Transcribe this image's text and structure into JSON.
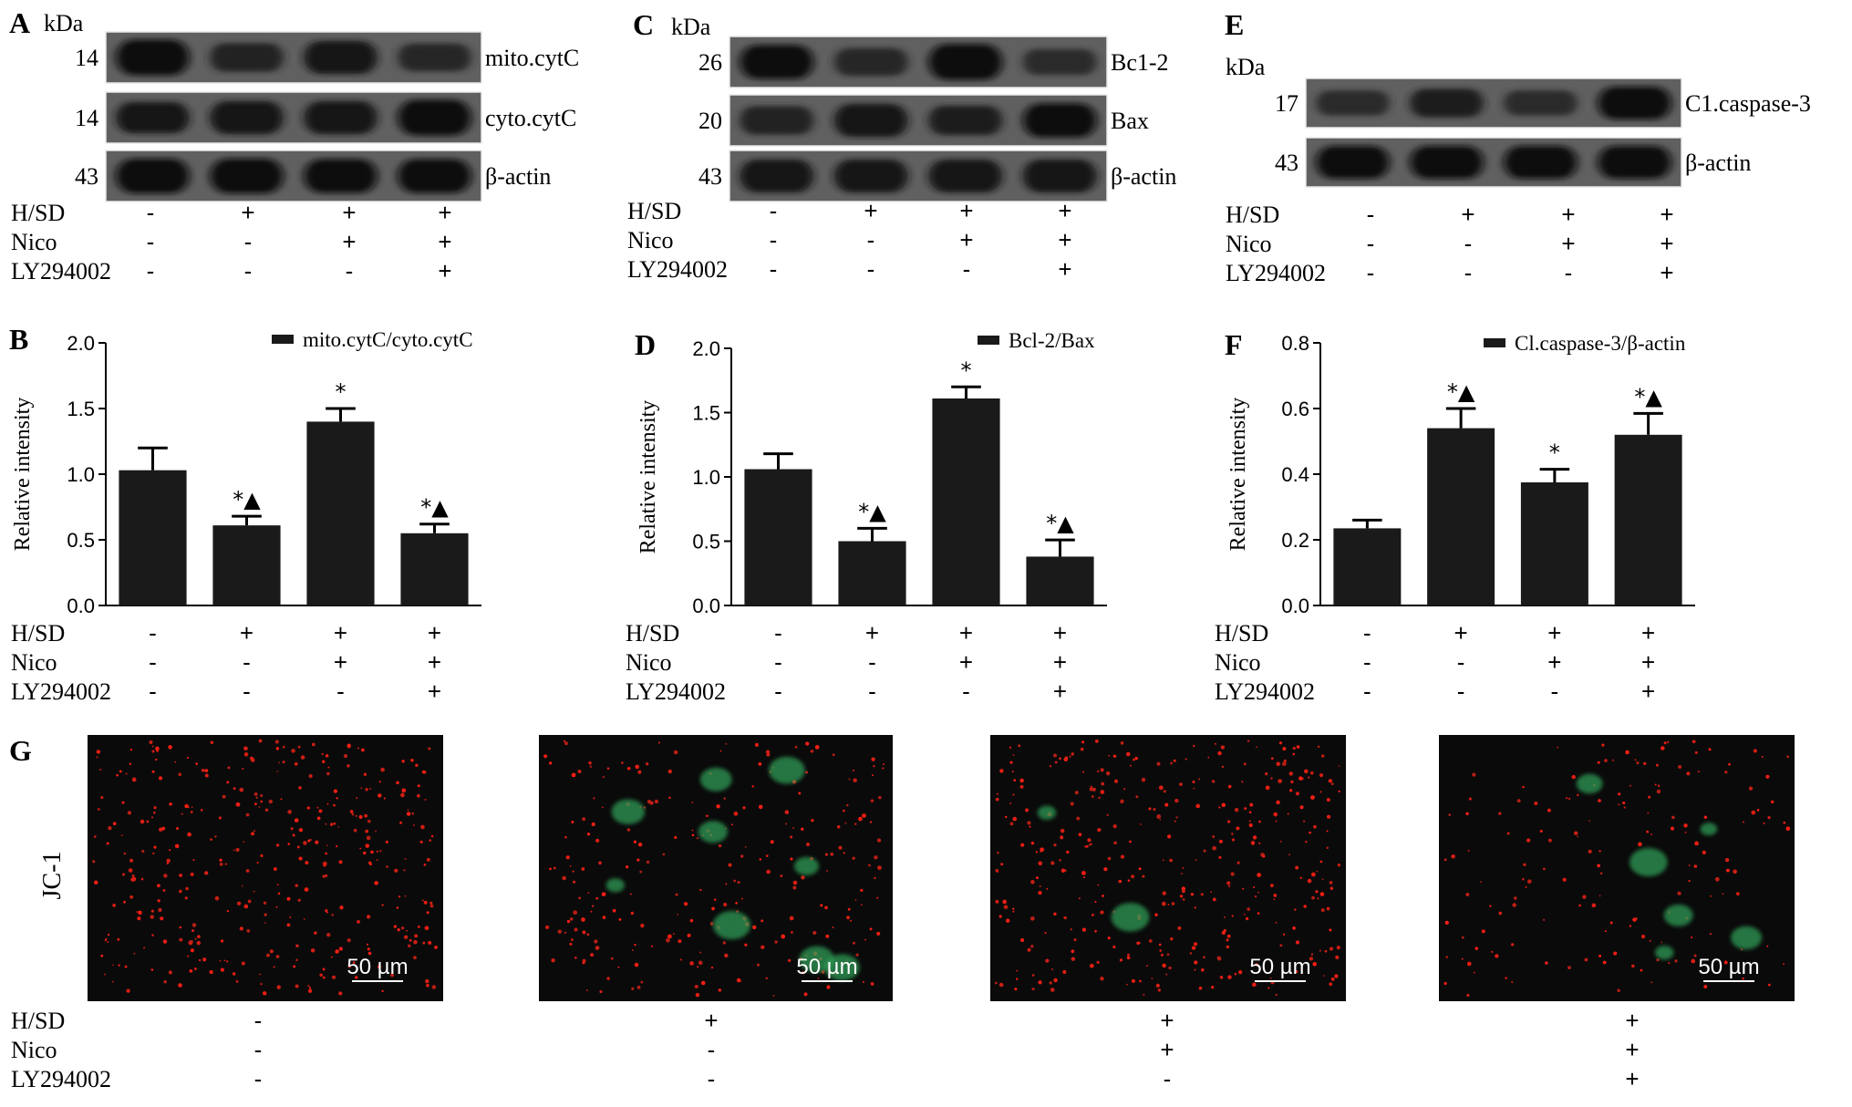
{
  "panels": {
    "A": {
      "letter": "A",
      "kda": "kDa",
      "bands": [
        {
          "mw": "14",
          "label": "mito.cytC",
          "intensity": [
            1.0,
            0.6,
            0.85,
            0.55
          ]
        },
        {
          "mw": "14",
          "label": "cyto.cytC",
          "intensity": [
            0.75,
            0.85,
            0.85,
            1.0
          ]
        },
        {
          "mw": "43",
          "label": "β-actin",
          "intensity": [
            0.95,
            0.95,
            0.9,
            0.9
          ]
        }
      ]
    },
    "C": {
      "letter": "C",
      "kda": "kDa",
      "bands": [
        {
          "mw": "26",
          "label": "Bc1-2",
          "intensity": [
            0.9,
            0.55,
            1.0,
            0.45
          ]
        },
        {
          "mw": "20",
          "label": "Bax",
          "intensity": [
            0.6,
            0.85,
            0.65,
            0.9
          ]
        },
        {
          "mw": "43",
          "label": "β-actin",
          "intensity": [
            0.85,
            0.85,
            0.85,
            0.85
          ]
        }
      ]
    },
    "E": {
      "letter": "E",
      "kda": "kDa",
      "bands": [
        {
          "mw": "17",
          "label": "C1.caspase-3",
          "intensity": [
            0.45,
            0.65,
            0.45,
            0.9
          ]
        },
        {
          "mw": "43",
          "label": "β-actin",
          "intensity": [
            0.9,
            0.9,
            0.9,
            0.9
          ]
        }
      ]
    },
    "G": {
      "letter": "G",
      "stain": "JC-1",
      "scale_bar": "50 µm",
      "images": [
        {
          "green_cells": 0
        },
        {
          "green_cells": 9
        },
        {
          "green_cells": 2
        },
        {
          "green_cells": 6
        }
      ]
    }
  },
  "treatment_labels": [
    "H/SD",
    "Nico",
    "LY294002"
  ],
  "treatment_signs": [
    [
      "-",
      "+",
      "+",
      "+"
    ],
    [
      "-",
      "-",
      "+",
      "+"
    ],
    [
      "-",
      "-",
      "-",
      "+"
    ]
  ],
  "bar_color": "#1a1a1a",
  "chart_data": [
    {
      "type": "bar",
      "panel": "B",
      "legend": "mito.cytC/cyto.cytC",
      "ylabel": "Relative intensity",
      "ylim": [
        0,
        2.0
      ],
      "yticks": [
        "0.0",
        "0.5",
        "1.0",
        "1.5",
        "2.0"
      ],
      "ytick_values": [
        0,
        0.5,
        1.0,
        1.5,
        2.0
      ],
      "values": [
        1.03,
        0.61,
        1.4,
        0.55
      ],
      "errors": [
        0.17,
        0.07,
        0.1,
        0.07
      ],
      "annotations": [
        "",
        "*▲",
        "*",
        "*▲"
      ]
    },
    {
      "type": "bar",
      "panel": "D",
      "legend": "Bcl-2/Bax",
      "ylabel": "Relative intensity",
      "ylim": [
        0,
        2.0
      ],
      "yticks": [
        "0.0",
        "0.5",
        "1.0",
        "1.5",
        "2.0"
      ],
      "ytick_values": [
        0,
        0.5,
        1.0,
        1.5,
        2.0
      ],
      "values": [
        1.06,
        0.5,
        1.61,
        0.38
      ],
      "errors": [
        0.12,
        0.1,
        0.09,
        0.13
      ],
      "annotations": [
        "",
        "*▲",
        "*",
        "*▲"
      ]
    },
    {
      "type": "bar",
      "panel": "F",
      "legend": "Cl.caspase-3/β-actin",
      "ylabel": "Relative intensity",
      "ylim": [
        0,
        0.8
      ],
      "yticks": [
        "0.0",
        "0.2",
        "0.4",
        "0.6",
        "0.8"
      ],
      "ytick_values": [
        0,
        0.2,
        0.4,
        0.6,
        0.8
      ],
      "values": [
        0.235,
        0.54,
        0.375,
        0.52
      ],
      "errors": [
        0.025,
        0.06,
        0.04,
        0.065
      ],
      "annotations": [
        "",
        "*▲",
        "*",
        "*▲"
      ]
    }
  ]
}
